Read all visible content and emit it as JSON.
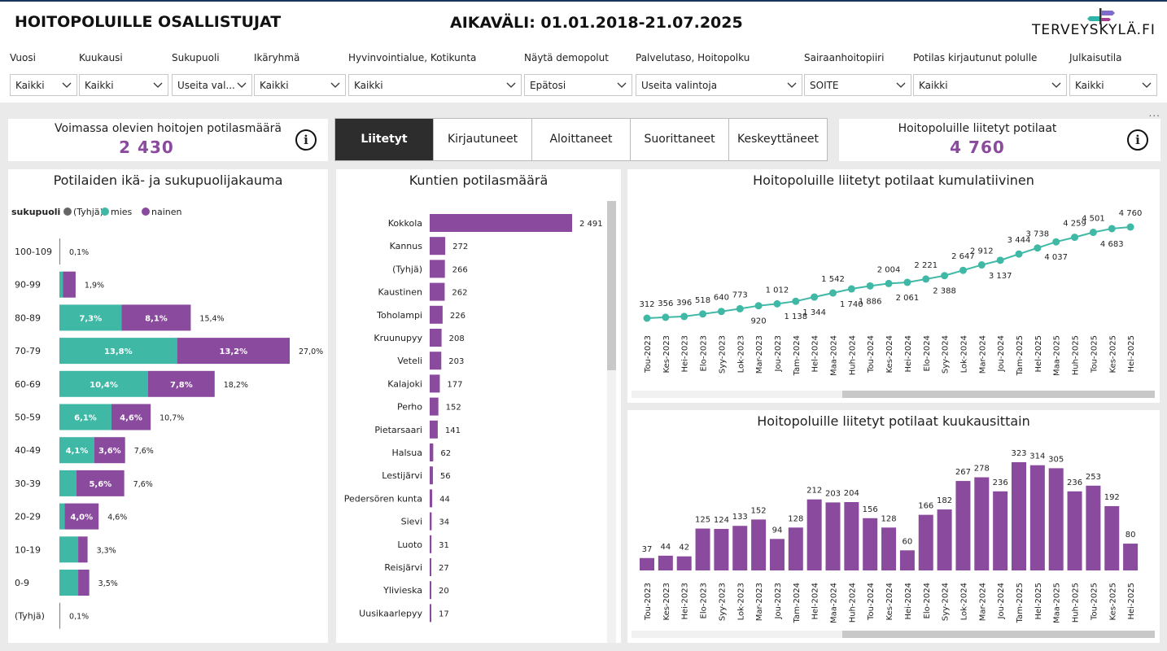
{
  "header": {
    "title": "HOITOPOLUILLE OSALLISTUJAT",
    "daterange": "AIKAVÄLI: 01.01.2018-21.07.2025",
    "logo_text": "TERVEYSKYLÄ.FI"
  },
  "filters": [
    {
      "label": "Vuosi",
      "value": "Kaikki"
    },
    {
      "label": "Kuukausi",
      "value": "Kaikki"
    },
    {
      "label": "Sukupuoli",
      "value": "Useita val..."
    },
    {
      "label": "Ikäryhmä",
      "value": "Kaikki"
    },
    {
      "label": "Hyvinvointialue, Kotikunta",
      "value": "Kaikki"
    },
    {
      "label": "Näytä demopolut",
      "value": "Epätosi"
    },
    {
      "label": "Palvelutaso, Hoitopolku",
      "value": "Useita valintoja"
    },
    {
      "label": "Sairaanhoitopiiri",
      "value": "SOITE"
    },
    {
      "label": "Potilas kirjautunut polulle",
      "value": "Kaikki"
    },
    {
      "label": "Julkaisutila",
      "value": "Kaikki"
    }
  ],
  "more_options": "...",
  "kpi_left": {
    "label": "Voimassa olevien hoitojen potilasmäärä",
    "value": "2 430",
    "info_icon": "i"
  },
  "kpi_right": {
    "label": "Hoitopoluille liitetyt potilaat",
    "value": "4 760",
    "info_icon": "i"
  },
  "tabs": [
    "Liitetyt",
    "Kirjautuneet",
    "Aloittaneet",
    "Suorittaneet",
    "Keskeyttäneet"
  ],
  "active_tab": "Liitetyt",
  "colors": {
    "mies": "#3fb8a6",
    "nainen": "#8a4a9e",
    "tyhja": "#666666",
    "accent": "#8a4a9e"
  },
  "chart_data": [
    {
      "type": "bar",
      "title": "Potilaiden ikä- ja sukupuolijakauma",
      "legend_title": "sukupuoli",
      "legend_placement": "top-left",
      "legend": [
        "(Tyhjä)",
        "mies",
        "nainen"
      ],
      "orientation": "horizontal",
      "stacked": true,
      "categories": [
        "100-109",
        "90-99",
        "80-89",
        "70-79",
        "60-69",
        "50-59",
        "40-49",
        "30-39",
        "20-29",
        "10-19",
        "0-9",
        "(Tyhjä)"
      ],
      "series": [
        {
          "name": "mies",
          "values": [
            0.05,
            0.4,
            7.3,
            13.8,
            10.4,
            6.1,
            4.1,
            2.0,
            0.6,
            2.2,
            2.2,
            0.05
          ],
          "labels": [
            "",
            "",
            "7,3%",
            "13,8%",
            "10,4%",
            "6,1%",
            "4,1%",
            "",
            "",
            "",
            "",
            ""
          ]
        },
        {
          "name": "nainen",
          "values": [
            0.05,
            1.5,
            8.1,
            13.2,
            7.8,
            4.6,
            3.6,
            5.6,
            4.0,
            1.1,
            1.3,
            0.05
          ],
          "labels": [
            "",
            "",
            "8,1%",
            "13,2%",
            "7,8%",
            "4,6%",
            "3,6%",
            "5,6%",
            "4,0%",
            "",
            "",
            ""
          ]
        }
      ],
      "totals": [
        "0,1%",
        "1,9%",
        "15,4%",
        "27,0%",
        "18,2%",
        "10,7%",
        "7,6%",
        "7,6%",
        "4,6%",
        "3,3%",
        "3,5%",
        "0,1%"
      ],
      "xlim": [
        0,
        27
      ]
    },
    {
      "type": "bar",
      "title": "Kuntien potilasmäärä",
      "orientation": "horizontal",
      "categories": [
        "Kokkola",
        "Kannus",
        "(Tyhjä)",
        "Kaustinen",
        "Toholampi",
        "Kruunupyy",
        "Veteli",
        "Kalajoki",
        "Perho",
        "Pietarsaari",
        "Halsua",
        "Lestijärvi",
        "Pedersören kunta",
        "Sievi",
        "Luoto",
        "Reisjärvi",
        "Ylivieska",
        "Uusikaarlepyy"
      ],
      "values": [
        2491,
        272,
        266,
        262,
        226,
        208,
        203,
        177,
        152,
        141,
        62,
        56,
        44,
        34,
        31,
        27,
        20,
        17
      ],
      "labels": [
        "2 491",
        "272",
        "266",
        "262",
        "226",
        "208",
        "203",
        "177",
        "152",
        "141",
        "62",
        "56",
        "44",
        "34",
        "31",
        "27",
        "20",
        "17"
      ]
    },
    {
      "type": "line",
      "title": "Hoitopoluille liitetyt potilaat kumulatiivinen",
      "x": [
        "Tou-2023",
        "Kes-2023",
        "Hei-2023",
        "Elo-2023",
        "Syy-2023",
        "Lok-2023",
        "Mar-2023",
        "Jou-2023",
        "Tam-2024",
        "Hel-2024",
        "Maa-2024",
        "Huh-2024",
        "Tou-2024",
        "Kes-2024",
        "Hei-2024",
        "Elo-2024",
        "Syy-2024",
        "Lok-2024",
        "Mar-2024",
        "Jou-2024",
        "Tam-2025",
        "Hel-2025",
        "Maa-2025",
        "Huh-2025",
        "Tou-2025",
        "Kes-2025",
        "Hei-2025"
      ],
      "values": [
        312,
        356,
        396,
        518,
        640,
        773,
        920,
        1012,
        1138,
        1344,
        1542,
        1740,
        1886,
        2004,
        2061,
        2221,
        2388,
        2647,
        2912,
        3137,
        3444,
        3738,
        4037,
        4259,
        4501,
        4683,
        4760
      ],
      "labels": [
        "312",
        "356",
        "396",
        "518",
        "640",
        "773",
        "920",
        "1 012",
        "1 138",
        "1 344",
        "1 542",
        "1 740",
        "1 886",
        "2 004",
        "2 061",
        "2 221",
        "2 388",
        "2 647",
        "2 912",
        "3 137",
        "3 444",
        "3 738",
        "4 037",
        "4 259",
        "4 501",
        "4 683",
        "4 760"
      ],
      "label_pos": [
        "up",
        "up",
        "up",
        "up",
        "up",
        "up",
        "down",
        "up",
        "down",
        "down",
        "up",
        "down",
        "down",
        "up",
        "down",
        "up",
        "down",
        "up",
        "up",
        "down",
        "up",
        "up",
        "down",
        "up",
        "up",
        "down",
        "up"
      ]
    },
    {
      "type": "bar",
      "title": "Hoitopoluille liitetyt potilaat kuukausittain",
      "categories": [
        "Tou-2023",
        "Kes-2023",
        "Hei-2023",
        "Elo-2023",
        "Syy-2023",
        "Lok-2023",
        "Mar-2023",
        "Jou-2023",
        "Tam-2024",
        "Hel-2024",
        "Maa-2024",
        "Huh-2024",
        "Tou-2024",
        "Kes-2024",
        "Hei-2024",
        "Elo-2024",
        "Syy-2024",
        "Lok-2024",
        "Mar-2024",
        "Jou-2024",
        "Tam-2025",
        "Hel-2025",
        "Maa-2025",
        "Huh-2025",
        "Tou-2025",
        "Kes-2025",
        "Hei-2025"
      ],
      "values": [
        37,
        44,
        42,
        125,
        124,
        133,
        152,
        94,
        128,
        212,
        203,
        204,
        156,
        128,
        60,
        166,
        182,
        267,
        278,
        236,
        323,
        314,
        305,
        236,
        253,
        192,
        80
      ]
    }
  ]
}
